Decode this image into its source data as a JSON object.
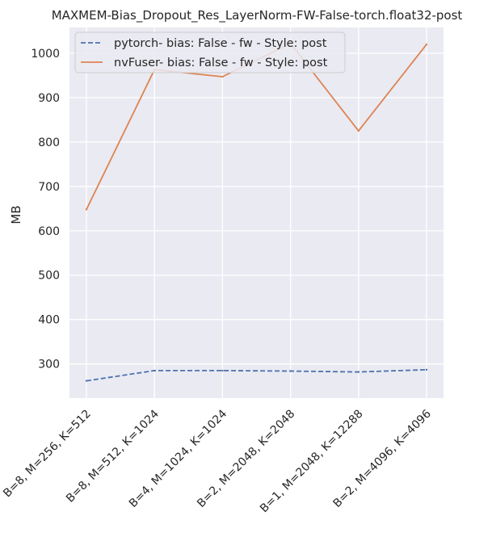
{
  "chart_data": {
    "type": "line",
    "title": "MAXMEM-Bias_Dropout_Res_LayerNorm-FW-False-torch.float32-post",
    "xlabel": "",
    "ylabel": "MB",
    "categories": [
      "B=8, M=256, K=512",
      "B=8, M=512, K=1024",
      "B=4, M=1024, K=1024",
      "B=2, M=2048, K=2048",
      "B=1, M=2048, K=12288",
      "B=2, M=4096, K=4096"
    ],
    "yticks": [
      300,
      400,
      500,
      600,
      700,
      800,
      900,
      1000
    ],
    "ylim": [
      223,
      1058
    ],
    "grid": true,
    "legend_position": "top-left",
    "series": [
      {
        "name": "pytorch- bias: False - fw - Style: post",
        "style": "dashed",
        "color": "#4c72b0",
        "values": [
          262,
          285,
          285,
          284,
          282,
          287
        ]
      },
      {
        "name": "nvFuser- bias: False - fw - Style: post",
        "style": "solid",
        "color": "#dd8452",
        "values": [
          648,
          963,
          947,
          1022,
          825,
          1020
        ]
      }
    ],
    "colors": {
      "plot_background": "#eaeaf2",
      "grid": "#ffffff",
      "text": "#262626"
    }
  }
}
